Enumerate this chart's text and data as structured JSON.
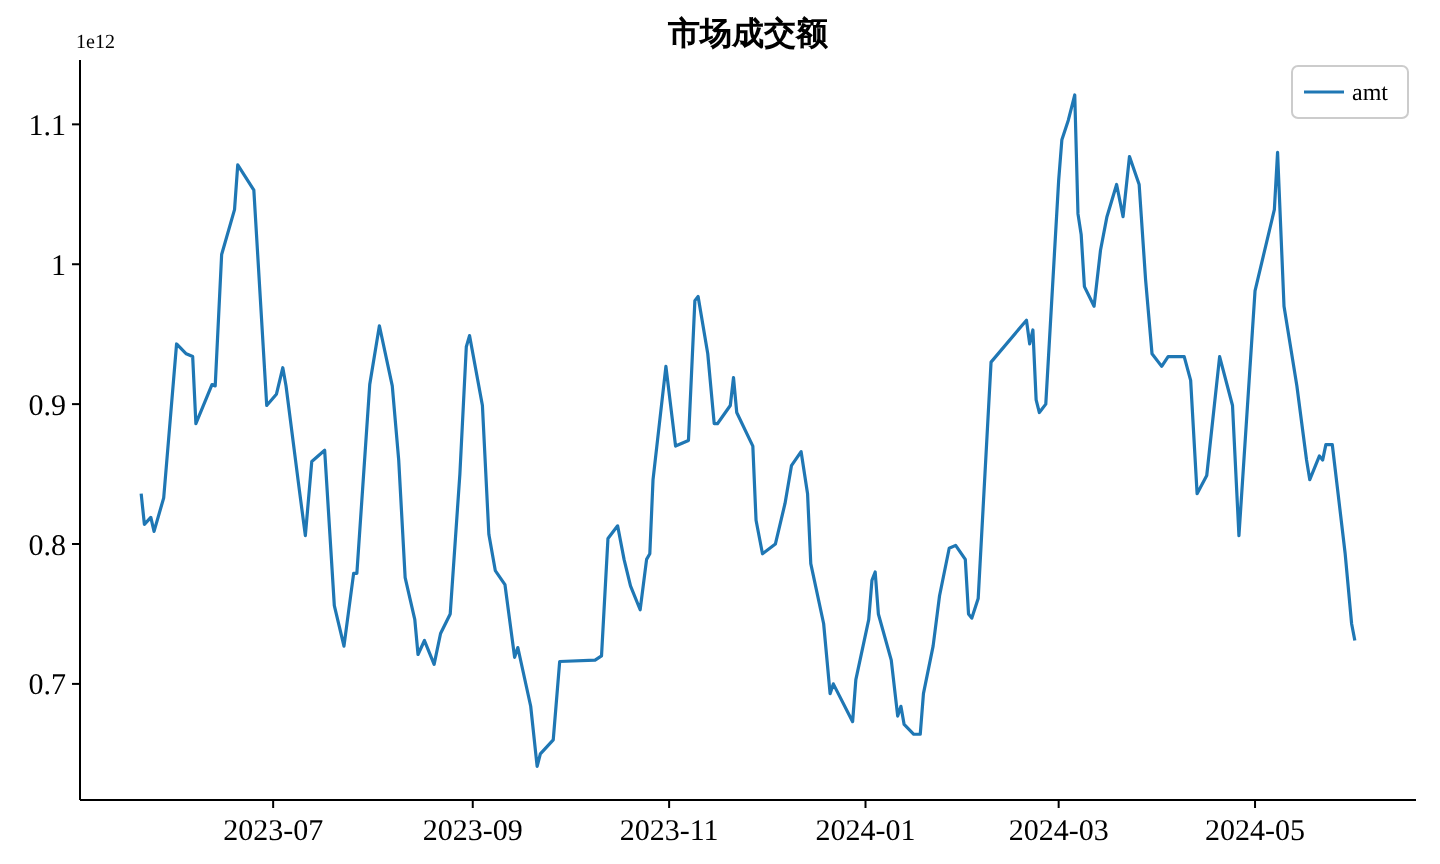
{
  "chart_data": {
    "type": "line",
    "title": "市场成交额",
    "annotations": [
      "1e12"
    ],
    "legend": "top right",
    "grid": false,
    "xlim": [
      "2023-05-02",
      "2024-06-20"
    ],
    "xticks": [
      {
        "value": "2023-07-01",
        "label": "2023-07"
      },
      {
        "value": "2023-09-01",
        "label": "2023-09"
      },
      {
        "value": "2023-11-01",
        "label": "2023-11"
      },
      {
        "value": "2024-01-01",
        "label": "2024-01"
      },
      {
        "value": "2024-03-01",
        "label": "2024-03"
      },
      {
        "value": "2024-05-01",
        "label": "2024-05"
      }
    ],
    "ylim": [
      0.617,
      1.146
    ],
    "yticks": [
      0.7,
      0.8,
      0.9,
      1.0,
      1.1
    ],
    "x": [
      "2023-05-21",
      "2023-05-22",
      "2023-05-24",
      "2023-05-25",
      "2023-05-28",
      "2023-06-01",
      "2023-06-04",
      "2023-06-06",
      "2023-06-07",
      "2023-06-12",
      "2023-06-13",
      "2023-06-15",
      "2023-06-19",
      "2023-06-20",
      "2023-06-25",
      "2023-06-29",
      "2023-07-02",
      "2023-07-04",
      "2023-07-05",
      "2023-07-09",
      "2023-07-11",
      "2023-07-13",
      "2023-07-17",
      "2023-07-20",
      "2023-07-23",
      "2023-07-26",
      "2023-07-27",
      "2023-07-31",
      "2023-08-03",
      "2023-08-07",
      "2023-08-09",
      "2023-08-11",
      "2023-08-14",
      "2023-08-15",
      "2023-08-17",
      "2023-08-20",
      "2023-08-22",
      "2023-08-25",
      "2023-08-28",
      "2023-08-30",
      "2023-08-31",
      "2023-09-04",
      "2023-09-06",
      "2023-09-08",
      "2023-09-11",
      "2023-09-14",
      "2023-09-15",
      "2023-09-19",
      "2023-09-21",
      "2023-09-22",
      "2023-09-26",
      "2023-09-28",
      "2023-10-09",
      "2023-10-11",
      "2023-10-13",
      "2023-10-16",
      "2023-10-18",
      "2023-10-20",
      "2023-10-23",
      "2023-10-25",
      "2023-10-26",
      "2023-10-27",
      "2023-10-31",
      "2023-11-03",
      "2023-11-07",
      "2023-11-09",
      "2023-11-10",
      "2023-11-13",
      "2023-11-15",
      "2023-11-16",
      "2023-11-20",
      "2023-11-21",
      "2023-11-22",
      "2023-11-27",
      "2023-11-28",
      "2023-11-30",
      "2023-12-04",
      "2023-12-07",
      "2023-12-09",
      "2023-12-12",
      "2023-12-14",
      "2023-12-15",
      "2023-12-19",
      "2023-12-21",
      "2023-12-22",
      "2023-12-28",
      "2023-12-29",
      "2024-01-02",
      "2024-01-03",
      "2024-01-04",
      "2024-01-05",
      "2024-01-09",
      "2024-01-11",
      "2024-01-12",
      "2024-01-13",
      "2024-01-16",
      "2024-01-18",
      "2024-01-19",
      "2024-01-22",
      "2024-01-24",
      "2024-01-27",
      "2024-01-29",
      "2024-02-01",
      "2024-02-02",
      "2024-02-03",
      "2024-02-05",
      "2024-02-09",
      "2024-02-20",
      "2024-02-21",
      "2024-02-22",
      "2024-02-23",
      "2024-02-24",
      "2024-02-26",
      "2024-03-01",
      "2024-03-02",
      "2024-03-04",
      "2024-03-06",
      "2024-03-07",
      "2024-03-08",
      "2024-03-09",
      "2024-03-12",
      "2024-03-14",
      "2024-03-16",
      "2024-03-19",
      "2024-03-21",
      "2024-03-23",
      "2024-03-26",
      "2024-03-28",
      "2024-03-30",
      "2024-04-02",
      "2024-04-04",
      "2024-04-09",
      "2024-04-11",
      "2024-04-13",
      "2024-04-16",
      "2024-04-20",
      "2024-04-24",
      "2024-04-26",
      "2024-05-01",
      "2024-05-07",
      "2024-05-08",
      "2024-05-10",
      "2024-05-14",
      "2024-05-17",
      "2024-05-18",
      "2024-05-21",
      "2024-05-22",
      "2024-05-23",
      "2024-05-25",
      "2024-05-29",
      "2024-05-31",
      "2024-06-01"
    ],
    "series": [
      {
        "name": "amt",
        "color": "#1f77b4",
        "values": [
          0.836,
          0.814,
          0.819,
          0.809,
          0.833,
          0.943,
          0.936,
          0.934,
          0.886,
          0.914,
          0.913,
          1.007,
          1.039,
          1.071,
          1.053,
          0.899,
          0.907,
          0.926,
          0.913,
          0.841,
          0.806,
          0.859,
          0.867,
          0.756,
          0.727,
          0.779,
          0.779,
          0.914,
          0.956,
          0.913,
          0.86,
          0.776,
          0.746,
          0.721,
          0.731,
          0.714,
          0.736,
          0.75,
          0.85,
          0.941,
          0.949,
          0.899,
          0.807,
          0.781,
          0.771,
          0.719,
          0.726,
          0.684,
          0.641,
          0.65,
          0.66,
          0.716,
          0.717,
          0.72,
          0.804,
          0.813,
          0.789,
          0.77,
          0.753,
          0.789,
          0.793,
          0.846,
          0.927,
          0.87,
          0.874,
          0.974,
          0.977,
          0.936,
          0.886,
          0.886,
          0.899,
          0.919,
          0.894,
          0.87,
          0.817,
          0.793,
          0.8,
          0.829,
          0.856,
          0.866,
          0.836,
          0.786,
          0.743,
          0.693,
          0.7,
          0.673,
          0.703,
          0.746,
          0.774,
          0.78,
          0.75,
          0.717,
          0.677,
          0.684,
          0.671,
          0.664,
          0.664,
          0.693,
          0.727,
          0.763,
          0.797,
          0.799,
          0.789,
          0.75,
          0.747,
          0.761,
          0.93,
          0.96,
          0.943,
          0.953,
          0.903,
          0.894,
          0.9,
          1.06,
          1.089,
          1.103,
          1.121,
          1.036,
          1.021,
          0.984,
          0.97,
          1.01,
          1.034,
          1.057,
          1.034,
          1.077,
          1.057,
          0.989,
          0.936,
          0.927,
          0.934,
          0.934,
          0.917,
          0.836,
          0.849,
          0.934,
          0.899,
          0.806,
          0.981,
          1.039,
          1.08,
          0.97,
          0.913,
          0.86,
          0.846,
          0.863,
          0.86,
          0.871,
          0.871,
          0.793,
          0.743,
          0.731
        ]
      }
    ]
  }
}
